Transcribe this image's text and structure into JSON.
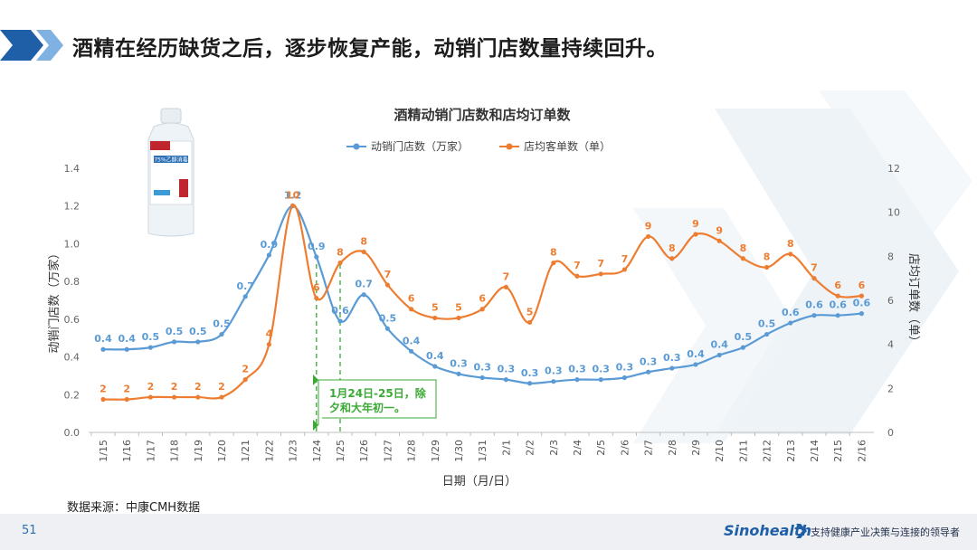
{
  "slide": {
    "title": "酒精在经历缺货之后，逐步恢复产能，动销门店数量持续回升。",
    "source": "数据来源：中康CMH数据",
    "page_number": "51",
    "logo_text": "Sinohealth",
    "slogan": "支持健康产业决策与连接的领导者",
    "bottle_label": "75%乙醇消毒"
  },
  "colors": {
    "blue_series": "#5b9bd5",
    "orange_series": "#ed7d31",
    "chevron_dark": "#1f5fa8",
    "chevron_light": "#7fb2e3",
    "annotation": "#3aaa35"
  },
  "chart_data": {
    "type": "line",
    "title": "酒精动销门店数和店均订单数",
    "xlabel": "日期（月/日）",
    "ylabel": "动销门店数（万家）",
    "y2label": "店均订单数（单）",
    "ylim": [
      0,
      1.4
    ],
    "y_ticks": [
      "0.0",
      "0.2",
      "0.4",
      "0.6",
      "0.8",
      "1.0",
      "1.2",
      "1.4"
    ],
    "y2lim": [
      0,
      12
    ],
    "y2_ticks": [
      "0",
      "2",
      "4",
      "6",
      "8",
      "10",
      "12"
    ],
    "categories": [
      "1/15",
      "1/16",
      "1/17",
      "1/18",
      "1/19",
      "1/20",
      "1/21",
      "1/22",
      "1/23",
      "1/24",
      "1/25",
      "1/26",
      "1/27",
      "1/28",
      "1/29",
      "1/30",
      "1/31",
      "2/1",
      "2/2",
      "2/3",
      "2/4",
      "2/5",
      "2/6",
      "2/7",
      "2/8",
      "2/9",
      "2/10",
      "2/11",
      "2/12",
      "2/13",
      "2/14",
      "2/15",
      "2/16"
    ],
    "series": [
      {
        "name": "动销门店数（万家）",
        "axis": "left",
        "values": [
          0.44,
          0.44,
          0.45,
          0.48,
          0.48,
          0.52,
          0.72,
          0.94,
          1.2,
          0.93,
          0.59,
          0.73,
          0.55,
          0.43,
          0.35,
          0.31,
          0.29,
          0.28,
          0.26,
          0.27,
          0.28,
          0.28,
          0.29,
          0.32,
          0.34,
          0.36,
          0.41,
          0.45,
          0.52,
          0.58,
          0.62,
          0.62,
          0.63
        ],
        "labels": [
          "0.4",
          "0.4",
          "0.5",
          "0.5",
          "0.5",
          "0.5",
          "0.7",
          "0.9",
          "1.2",
          "0.9",
          "0.6",
          "0.7",
          "0.5",
          "0.4",
          "0.4",
          "0.3",
          "0.3",
          "0.3",
          "0.3",
          "0.3",
          "0.3",
          "0.3",
          "0.3",
          "0.3",
          "0.3",
          "0.4",
          "0.4",
          "0.5",
          "0.5",
          "0.6",
          "0.6",
          "0.6",
          "0.6"
        ]
      },
      {
        "name": "店均客单数（单）",
        "axis": "right",
        "values": [
          1.5,
          1.5,
          1.6,
          1.6,
          1.6,
          1.6,
          2.4,
          4.0,
          10.3,
          6.1,
          7.7,
          8.2,
          6.7,
          5.6,
          5.2,
          5.2,
          5.6,
          6.6,
          5.0,
          7.7,
          7.1,
          7.2,
          7.4,
          8.9,
          7.9,
          9.0,
          8.7,
          7.9,
          7.5,
          8.1,
          7.0,
          6.2,
          6.2
        ],
        "labels": [
          "2",
          "2",
          "2",
          "2",
          "2",
          "2",
          "2",
          "4",
          "10",
          "6",
          "8",
          "8",
          "7",
          "6",
          "5",
          "5",
          "6",
          "7",
          "5",
          "8",
          "7",
          "7",
          "7",
          "9",
          "8",
          "9",
          "9",
          "8",
          "8",
          "8",
          "7",
          "6",
          "6"
        ]
      }
    ],
    "annotation": {
      "text_line1": "1月24日-25日，除",
      "text_line2": "夕和大年初一。",
      "categories": [
        "1/24",
        "1/25"
      ]
    },
    "legend_position": "top"
  }
}
